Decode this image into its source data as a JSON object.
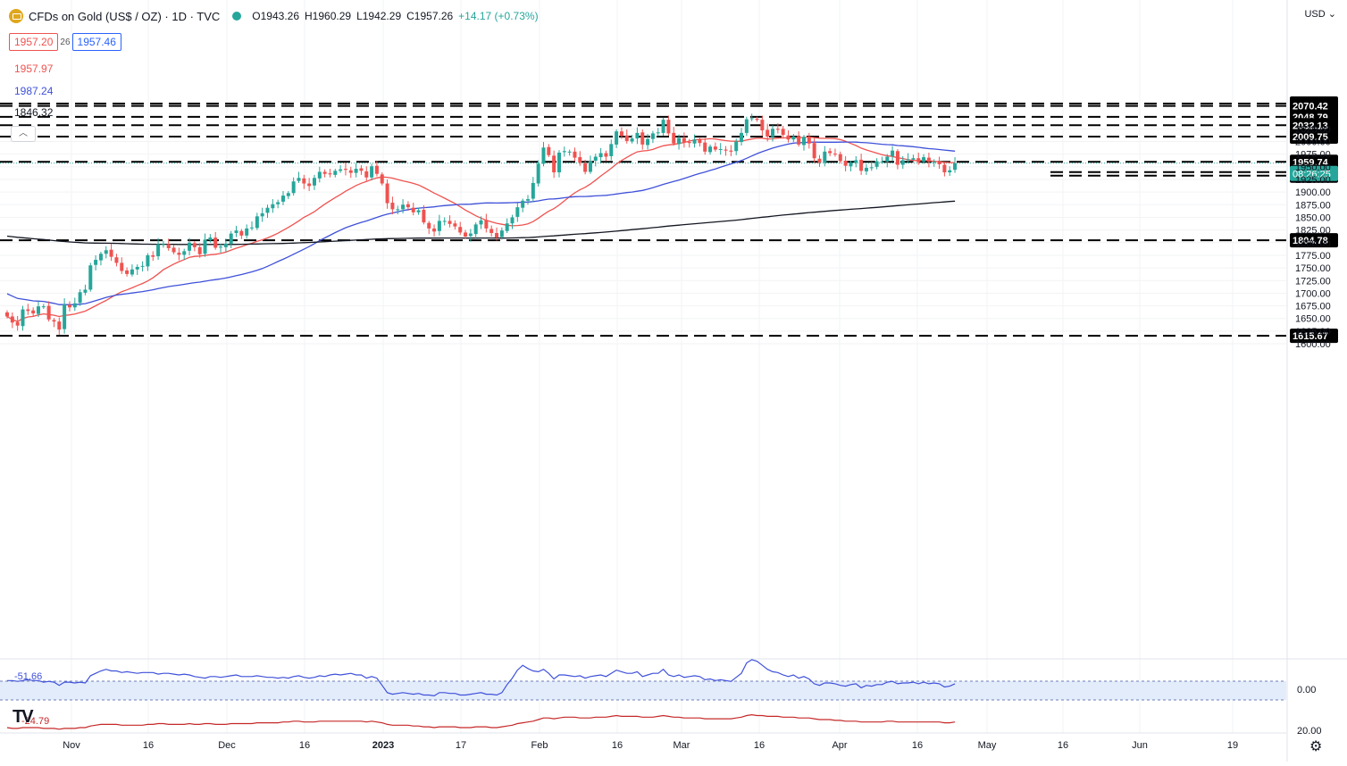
{
  "header": {
    "title": "CFDs on Gold (US$ / OZ) · 1D · TVC",
    "ohlc": {
      "open": "O1943.26",
      "high": "H1960.29",
      "low": "L1942.29",
      "close": "C1957.26",
      "change": "+14.17 (+0.73%)"
    },
    "bid": "1957.20",
    "spread": "26",
    "ask": "1957.46",
    "indicator_values": [
      "1957.97",
      "1987.24",
      "1846.32"
    ]
  },
  "currency": "USD",
  "countdown": "08:26:25",
  "osc_labels": {
    "upper": "-51.66",
    "lower": "-24.79"
  },
  "colors": {
    "up": "#26a69a",
    "down": "#ef5350",
    "ma_fast": "#ef5350",
    "ma_mid": "#3f51d9",
    "ma_slow": "#131722",
    "osc_blue": "#3f51d9",
    "osc_red": "#c62828"
  },
  "chart_data": {
    "type": "candlestick",
    "price_axis": {
      "ylim": [
        1575,
        2090
      ],
      "ticks": [
        1600,
        1625,
        1650,
        1675,
        1700,
        1725,
        1750,
        1775,
        1800,
        1825,
        1850,
        1875,
        1900,
        1925,
        1950,
        1975,
        2000,
        2025
      ]
    },
    "time_axis": [
      "Nov",
      "16",
      "Dec",
      "16",
      "2023",
      "17",
      "Feb",
      "16",
      "Mar",
      "16",
      "Apr",
      "16",
      "May",
      "16",
      "Jun",
      "19"
    ],
    "levels": [
      "2075.14",
      "2070.42",
      "2048.79",
      "2032.13",
      "2009.75",
      "1959.74",
      "1939.56",
      "1932.49",
      "1804.78",
      "1615.67"
    ],
    "last_price": "1957.26",
    "candles_close": [
      1654,
      1642,
      1636,
      1668,
      1665,
      1660,
      1674,
      1674,
      1648,
      1644,
      1628,
      1678,
      1672,
      1680,
      1702,
      1707,
      1755,
      1766,
      1778,
      1785,
      1772,
      1760,
      1744,
      1738,
      1747,
      1752,
      1754,
      1775,
      1772,
      1797,
      1797,
      1789,
      1781,
      1776,
      1783,
      1800,
      1791,
      1777,
      1806,
      1810,
      1790,
      1792,
      1798,
      1818,
      1824,
      1814,
      1828,
      1830,
      1852,
      1858,
      1869,
      1876,
      1880,
      1893,
      1898,
      1921,
      1928,
      1917,
      1912,
      1928,
      1940,
      1936,
      1935,
      1942,
      1945,
      1944,
      1938,
      1946,
      1942,
      1929,
      1951,
      1936,
      1917,
      1878,
      1866,
      1866,
      1875,
      1870,
      1860,
      1864,
      1840,
      1828,
      1822,
      1843,
      1843,
      1837,
      1832,
      1820,
      1812,
      1818,
      1836,
      1844,
      1828,
      1819,
      1810,
      1824,
      1838,
      1850,
      1870,
      1883,
      1886,
      1918,
      1956,
      1988,
      1973,
      1939,
      1978,
      1981,
      1980,
      1968,
      1958,
      1940,
      1961,
      1970,
      1977,
      1970,
      1995,
      2020,
      2011,
      2001,
      2006,
      2017,
      1994,
      2005,
      2016,
      2018,
      2043,
      2016,
      1996,
      2007,
      1998,
      1997,
      2004,
      1997,
      1980,
      1990,
      1984,
      1985,
      1982,
      1980,
      2000,
      2017,
      2044,
      2046,
      2043,
      2022,
      2010,
      2025,
      2024,
      2013,
      2004,
      2010,
      1994,
      2009,
      1996,
      1967,
      1958,
      1980,
      1977,
      1975,
      1961,
      1952,
      1958,
      1963,
      1942,
      1948,
      1949,
      1961,
      1960,
      1970,
      1982,
      1954,
      1963,
      1965,
      1967,
      1959,
      1969,
      1960,
      1960,
      1955,
      1939,
      1943,
      1957
    ]
  },
  "oscillator": {
    "blue_series": [
      33,
      33,
      32,
      33,
      34,
      33,
      33,
      31,
      32,
      31,
      27,
      31,
      31,
      30,
      31,
      30,
      39,
      42,
      45,
      47,
      45,
      45,
      43,
      44,
      43,
      42,
      43,
      43,
      43,
      41,
      42,
      42,
      41,
      40,
      41,
      40,
      38,
      37,
      36,
      38,
      38,
      37,
      38,
      39,
      40,
      38,
      38,
      38,
      39,
      38,
      37,
      37,
      36,
      37,
      36,
      38,
      39,
      37,
      36,
      37,
      39,
      38,
      40,
      41,
      40,
      41,
      42,
      40,
      40,
      36,
      38,
      36,
      27,
      18,
      16,
      17,
      18,
      17,
      16,
      17,
      15,
      15,
      14,
      18,
      18,
      17,
      17,
      15,
      15,
      16,
      17,
      18,
      16,
      16,
      15,
      18,
      28,
      36,
      46,
      52,
      48,
      45,
      44,
      47,
      42,
      35,
      40,
      40,
      39,
      38,
      39,
      36,
      38,
      39,
      40,
      38,
      42,
      46,
      44,
      42,
      42,
      44,
      38,
      40,
      42,
      42,
      47,
      40,
      38,
      40,
      37,
      38,
      39,
      38,
      34,
      35,
      33,
      34,
      33,
      32,
      37,
      42,
      55,
      59,
      57,
      52,
      47,
      44,
      43,
      40,
      38,
      40,
      36,
      38,
      35,
      29,
      27,
      30,
      30,
      29,
      27,
      26,
      28,
      29,
      24,
      27,
      26,
      28,
      28,
      31,
      32,
      29,
      30,
      30,
      31,
      29,
      31,
      29,
      30,
      29,
      25,
      26,
      29
    ],
    "red_series": [
      -10,
      -11,
      -11,
      -10,
      -10,
      -10,
      -10,
      -11,
      -11,
      -11,
      -12,
      -11,
      -11,
      -11,
      -10,
      -10,
      -8,
      -7,
      -6,
      -6,
      -6,
      -6,
      -7,
      -7,
      -7,
      -7,
      -7,
      -6,
      -6,
      -5,
      -5,
      -6,
      -6,
      -6,
      -6,
      -5,
      -6,
      -6,
      -5,
      -5,
      -6,
      -6,
      -6,
      -5,
      -5,
      -5,
      -5,
      -5,
      -4,
      -4,
      -4,
      -4,
      -4,
      -3,
      -3,
      -2,
      -2,
      -3,
      -3,
      -3,
      -2,
      -2,
      -2,
      -2,
      -2,
      -2,
      -2,
      -2,
      -2,
      -3,
      -2,
      -3,
      -4,
      -6,
      -7,
      -7,
      -7,
      -7,
      -8,
      -8,
      -9,
      -9,
      -10,
      -9,
      -9,
      -9,
      -9,
      -10,
      -10,
      -10,
      -9,
      -9,
      -9,
      -10,
      -10,
      -9,
      -8,
      -7,
      -5,
      -4,
      -3,
      -2,
      0,
      2,
      2,
      1,
      2,
      3,
      3,
      3,
      2,
      2,
      2,
      3,
      3,
      3,
      4,
      5,
      4,
      4,
      4,
      4,
      3,
      3,
      3,
      4,
      5,
      4,
      3,
      3,
      2,
      2,
      2,
      2,
      1,
      1,
      1,
      1,
      1,
      1,
      2,
      3,
      5,
      6,
      5,
      5,
      4,
      4,
      4,
      3,
      3,
      3,
      2,
      2,
      2,
      1,
      0,
      0,
      0,
      -1,
      -1,
      -2,
      -2,
      -2,
      -3,
      -3,
      -3,
      -3,
      -3,
      -2,
      -2,
      -3,
      -3,
      -3,
      -3,
      -3,
      -3,
      -3,
      -3,
      -3,
      -4,
      -4,
      -3
    ]
  }
}
